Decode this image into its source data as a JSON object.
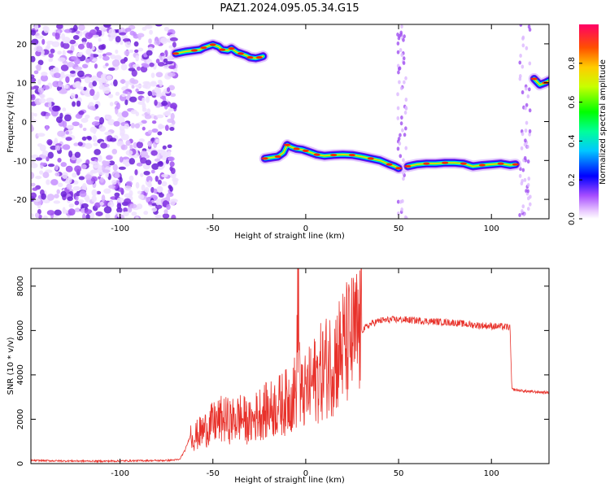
{
  "title": "PAZ1.2024.095.05.34.G15",
  "chart_data": [
    {
      "type": "heatmap",
      "xlabel": "Height of straight line (km)",
      "ylabel": "Frequency (Hz)",
      "xlim": [
        -148,
        131
      ],
      "ylim": [
        -25,
        25
      ],
      "xticks": [
        -100,
        -50,
        0,
        50,
        100
      ],
      "yticks": [
        -20,
        -10,
        0,
        10,
        20
      ],
      "noise_region": {
        "x": [
          -148,
          -70
        ],
        "y": [
          -25,
          25
        ]
      },
      "tracks": [
        {
          "x": [
            -70,
            -65,
            -60,
            -57,
            -55,
            -52,
            -50,
            -47,
            -45,
            -42,
            -40,
            -37,
            -35,
            -32,
            -30,
            -27,
            -25,
            -23
          ],
          "y": [
            17.5,
            18,
            18.3,
            18.5,
            19,
            19.5,
            19.8,
            19.3,
            18.5,
            18.3,
            18.8,
            17.8,
            17.5,
            17,
            16.5,
            16.3,
            16.5,
            16.8
          ]
        },
        {
          "x": [
            -22,
            -18,
            -15,
            -12,
            -10,
            -8,
            -5,
            -2,
            0,
            3,
            6,
            10,
            15,
            20,
            25,
            30,
            35,
            40,
            45,
            48,
            50
          ],
          "y": [
            -9.5,
            -9.2,
            -9,
            -8,
            -6,
            -6.5,
            -7,
            -7.2,
            -7.5,
            -8,
            -8.5,
            -8.8,
            -8.6,
            -8.5,
            -8.6,
            -9,
            -9.5,
            -10,
            -11,
            -11.5,
            -12
          ]
        },
        {
          "x": [
            55,
            60,
            65,
            70,
            75,
            80,
            85,
            90,
            95,
            100,
            105,
            110,
            113
          ],
          "y": [
            -11.5,
            -11,
            -10.8,
            -10.8,
            -10.6,
            -10.6,
            -10.8,
            -11.5,
            -11.2,
            -11,
            -10.8,
            -11.2,
            -11
          ]
        },
        {
          "x": [
            123,
            126,
            129,
            131
          ],
          "y": [
            11,
            9.5,
            10,
            10.5
          ]
        }
      ],
      "colorbar": {
        "label": "Normalized spectral amplitude",
        "range": [
          0,
          1
        ],
        "ticks": [
          0.0,
          0.2,
          0.4,
          0.6,
          0.8
        ]
      }
    },
    {
      "type": "line",
      "xlabel": "Height of straight line (km)",
      "ylabel": "SNR (10 * v/v)",
      "xlim": [
        -148,
        131
      ],
      "ylim": [
        0,
        8800
      ],
      "xticks": [
        -100,
        -50,
        0,
        50,
        100
      ],
      "yticks": [
        0,
        2000,
        4000,
        6000,
        8000
      ],
      "series": [
        {
          "color": "#e8322b",
          "x": [
            -148,
            -130,
            -110,
            -90,
            -75,
            -68,
            -65,
            -62,
            -60,
            -55,
            -50,
            -45,
            -40,
            -35,
            -30,
            -25,
            -20,
            -15,
            -10,
            -5,
            -4,
            -3,
            0,
            5,
            10,
            15,
            20,
            25,
            30,
            35,
            40,
            50,
            60,
            70,
            80,
            90,
            100,
            110,
            111,
            115,
            120,
            131
          ],
          "y": [
            140,
            120,
            110,
            130,
            140,
            180,
            600,
            1300,
            1200,
            1500,
            1800,
            2000,
            1900,
            2100,
            1800,
            2300,
            2400,
            2600,
            2800,
            3300,
            8700,
            3000,
            3200,
            3800,
            4300,
            4700,
            5200,
            5600,
            6000,
            6300,
            6450,
            6500,
            6450,
            6400,
            6350,
            6250,
            6200,
            6150,
            3350,
            3300,
            3250,
            3200
          ]
        }
      ]
    }
  ]
}
